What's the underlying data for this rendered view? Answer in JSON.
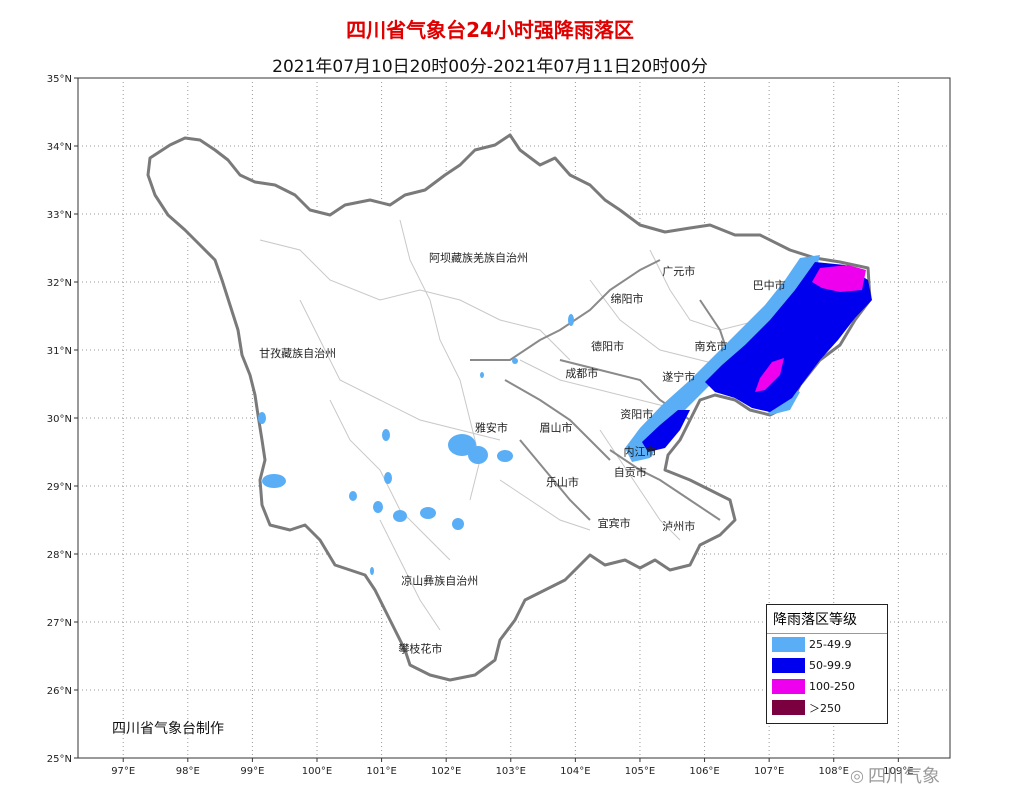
{
  "title": "四川省气象台24小时强降雨落区",
  "subtitle": "2021年07月10日20时00分-2021年07月11日20时00分",
  "credit": "四川省气象台制作",
  "watermark": "四川气象",
  "watermark_icon": "weibo-icon",
  "axes": {
    "longitude_ticks": [
      "97°E",
      "98°E",
      "99°E",
      "100°E",
      "101°E",
      "102°E",
      "103°E",
      "104°E",
      "105°E",
      "106°E",
      "107°E",
      "108°E",
      "109°E"
    ],
    "latitude_ticks": [
      "35°N",
      "34°N",
      "33°N",
      "32°N",
      "31°N",
      "30°N",
      "29°N",
      "28°N",
      "27°N",
      "26°N",
      "25°N"
    ],
    "lon_range": [
      96.3,
      109.8
    ],
    "lat_range": [
      25,
      35
    ],
    "grid": "dotted"
  },
  "regions": [
    {
      "name": "阿坝藏族羌族自治州",
      "lon": 102.5,
      "lat": 32.3
    },
    {
      "name": "甘孜藏族自治州",
      "lon": 99.7,
      "lat": 30.9
    },
    {
      "name": "广元市",
      "lon": 105.6,
      "lat": 32.1
    },
    {
      "name": "巴中市",
      "lon": 107.0,
      "lat": 31.9
    },
    {
      "name": "绵阳市",
      "lon": 104.8,
      "lat": 31.7
    },
    {
      "name": "德阳市",
      "lon": 104.5,
      "lat": 31.0
    },
    {
      "name": "南充市",
      "lon": 106.1,
      "lat": 31.0
    },
    {
      "name": "成都市",
      "lon": 104.1,
      "lat": 30.6
    },
    {
      "name": "遂宁市",
      "lon": 105.6,
      "lat": 30.55
    },
    {
      "name": "雅安市",
      "lon": 102.7,
      "lat": 29.8
    },
    {
      "name": "眉山市",
      "lon": 103.7,
      "lat": 29.8
    },
    {
      "name": "资阳市",
      "lon": 104.95,
      "lat": 30.0
    },
    {
      "name": "内江市",
      "lon": 105.0,
      "lat": 29.45
    },
    {
      "name": "自贡市",
      "lon": 104.85,
      "lat": 29.15
    },
    {
      "name": "乐山市",
      "lon": 103.8,
      "lat": 29.0
    },
    {
      "name": "宜宾市",
      "lon": 104.6,
      "lat": 28.4
    },
    {
      "name": "泸州市",
      "lon": 105.6,
      "lat": 28.35
    },
    {
      "name": "凉山彝族自治州",
      "lon": 101.9,
      "lat": 27.55
    },
    {
      "name": "攀枝花市",
      "lon": 101.6,
      "lat": 26.55
    }
  ],
  "legend": {
    "title": "降雨落区等级",
    "items": [
      {
        "label": "25-49.9",
        "color": "#5aaef5"
      },
      {
        "label": "50-99.9",
        "color": "#0000ee"
      },
      {
        "label": "100-250",
        "color": "#ee00ee"
      },
      {
        "label": "＞250",
        "color": "#7a0040"
      }
    ]
  },
  "colors": {
    "title": "#e00000",
    "border": "#7a7a7a",
    "county": "#cfcfcf"
  }
}
